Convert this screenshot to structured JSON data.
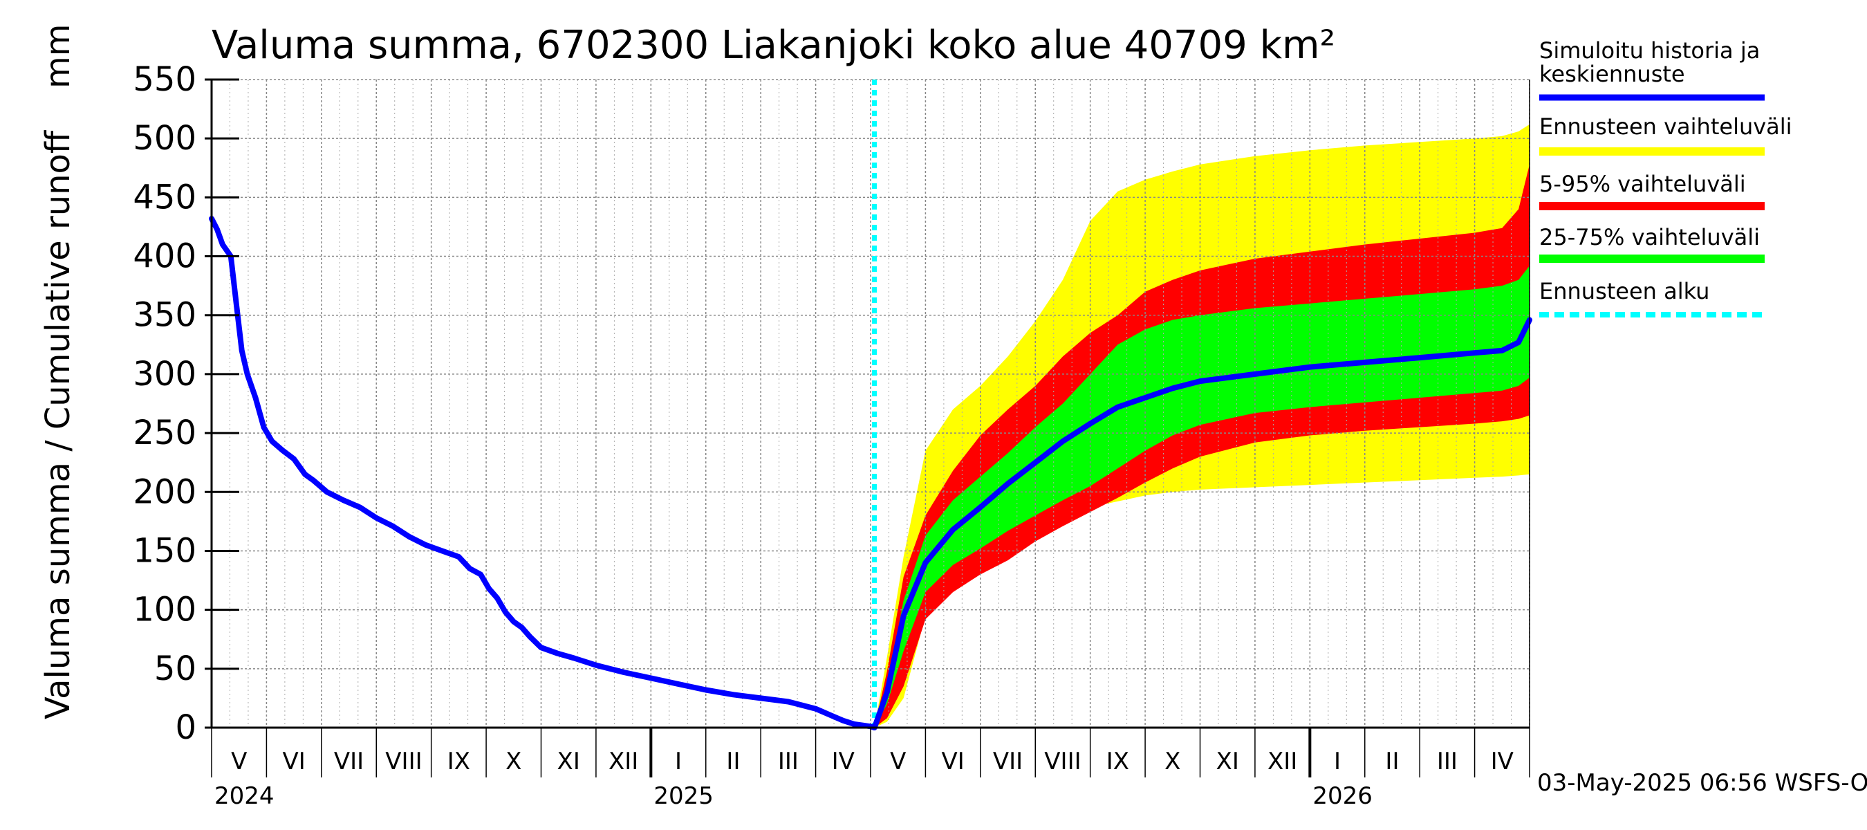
{
  "chart_data": {
    "type": "area",
    "title": "Valuma summa, 6702300 Liakanjoki koko alue 40709 km²",
    "ylabel": "Valuma summa / Cumulative runoff    mm",
    "ylim": [
      0,
      550
    ],
    "yticks": [
      0,
      50,
      100,
      150,
      200,
      250,
      300,
      350,
      400,
      450,
      500,
      550
    ],
    "ytick_labels": [
      "0",
      "50",
      "100",
      "150",
      "200",
      "250",
      "300",
      "350",
      "400",
      "450",
      "500",
      "550"
    ],
    "x_start": "2024-05-01",
    "x_end": "2026-05-01",
    "x_unit": "months since 2024-05-01",
    "forecast_start": 12.07,
    "month_labels": [
      "V",
      "VI",
      "VII",
      "VIII",
      "IX",
      "X",
      "XI",
      "XII",
      "I",
      "II",
      "III",
      "IV",
      "V",
      "VI",
      "VII",
      "VIII",
      "IX",
      "X",
      "XI",
      "XII",
      "I",
      "II",
      "III",
      "IV"
    ],
    "year_labels": [
      {
        "label": "2024",
        "month": 0
      },
      {
        "label": "2025",
        "month": 8
      },
      {
        "label": "2026",
        "month": 20
      }
    ],
    "timestamp": "03-May-2025 06:56 WSFS-O",
    "legend": [
      {
        "label": "Simuloitu historia ja keskiennuste",
        "color": "#0000ff",
        "style": "line"
      },
      {
        "label": "Ennusteen vaihteluväli",
        "color": "#ffff00",
        "style": "band"
      },
      {
        "label": "5-95% vaihteluväli",
        "color": "#ff0000",
        "style": "band"
      },
      {
        "label": "25-75% vaihteluväli",
        "color": "#00ff00",
        "style": "band"
      },
      {
        "label": "Ennusteen alku",
        "color": "#00ffff",
        "style": "dashed"
      }
    ],
    "history": {
      "x": [
        0,
        0.1,
        0.2,
        0.35,
        0.45,
        0.55,
        0.65,
        0.8,
        0.95,
        1.1,
        1.3,
        1.5,
        1.7,
        1.85,
        2.1,
        2.4,
        2.7,
        3.0,
        3.3,
        3.6,
        3.9,
        4.2,
        4.5,
        4.7,
        4.9,
        5.05,
        5.2,
        5.35,
        5.5,
        5.65,
        5.8,
        6.0,
        6.3,
        6.6,
        7.0,
        7.5,
        8.0,
        8.5,
        9.0,
        9.5,
        10.0,
        10.5,
        11.0,
        11.3,
        11.5,
        11.7,
        11.85,
        12.0,
        12.07
      ],
      "y": [
        432,
        423,
        410,
        400,
        360,
        320,
        300,
        280,
        255,
        243,
        235,
        228,
        215,
        210,
        200,
        193,
        187,
        178,
        171,
        162,
        155,
        150,
        145,
        135,
        130,
        118,
        110,
        98,
        90,
        85,
        77,
        68,
        63,
        59,
        53,
        47,
        42,
        37,
        32,
        28,
        25,
        22,
        16,
        10,
        6,
        3,
        2,
        1,
        0
      ]
    },
    "forecast": {
      "x": [
        12.07,
        12.3,
        12.6,
        13.0,
        13.5,
        14.0,
        14.5,
        15.0,
        15.5,
        16.0,
        16.5,
        17.0,
        17.5,
        18.0,
        19.0,
        20.0,
        21.0,
        22.0,
        23.0,
        23.5,
        23.8,
        24.0
      ],
      "median": [
        0,
        30,
        95,
        140,
        168,
        187,
        207,
        225,
        243,
        258,
        272,
        280,
        288,
        294,
        300,
        306,
        310,
        314,
        318,
        320,
        327,
        346
      ],
      "p25": [
        0,
        20,
        65,
        115,
        138,
        152,
        167,
        180,
        193,
        205,
        220,
        235,
        248,
        257,
        267,
        272,
        276,
        280,
        284,
        286,
        290,
        297
      ],
      "p75": [
        0,
        35,
        108,
        163,
        193,
        213,
        233,
        255,
        275,
        300,
        325,
        338,
        346,
        350,
        356,
        360,
        364,
        368,
        372,
        375,
        380,
        392
      ],
      "p5": [
        0,
        8,
        35,
        92,
        115,
        130,
        142,
        158,
        171,
        183,
        195,
        208,
        220,
        230,
        242,
        248,
        252,
        255,
        258,
        260,
        262,
        265
      ],
      "p95": [
        0,
        48,
        128,
        180,
        218,
        248,
        270,
        290,
        315,
        335,
        350,
        370,
        380,
        388,
        398,
        404,
        410,
        415,
        420,
        424,
        440,
        478
      ],
      "min": [
        0,
        5,
        25,
        95,
        120,
        140,
        160,
        172,
        180,
        187,
        192,
        197,
        200,
        202,
        204,
        206,
        208,
        210,
        212,
        213,
        214,
        215
      ],
      "max": [
        0,
        60,
        145,
        235,
        270,
        290,
        315,
        345,
        380,
        430,
        455,
        465,
        472,
        478,
        485,
        490,
        494,
        497,
        500,
        502,
        506,
        512
      ]
    }
  }
}
